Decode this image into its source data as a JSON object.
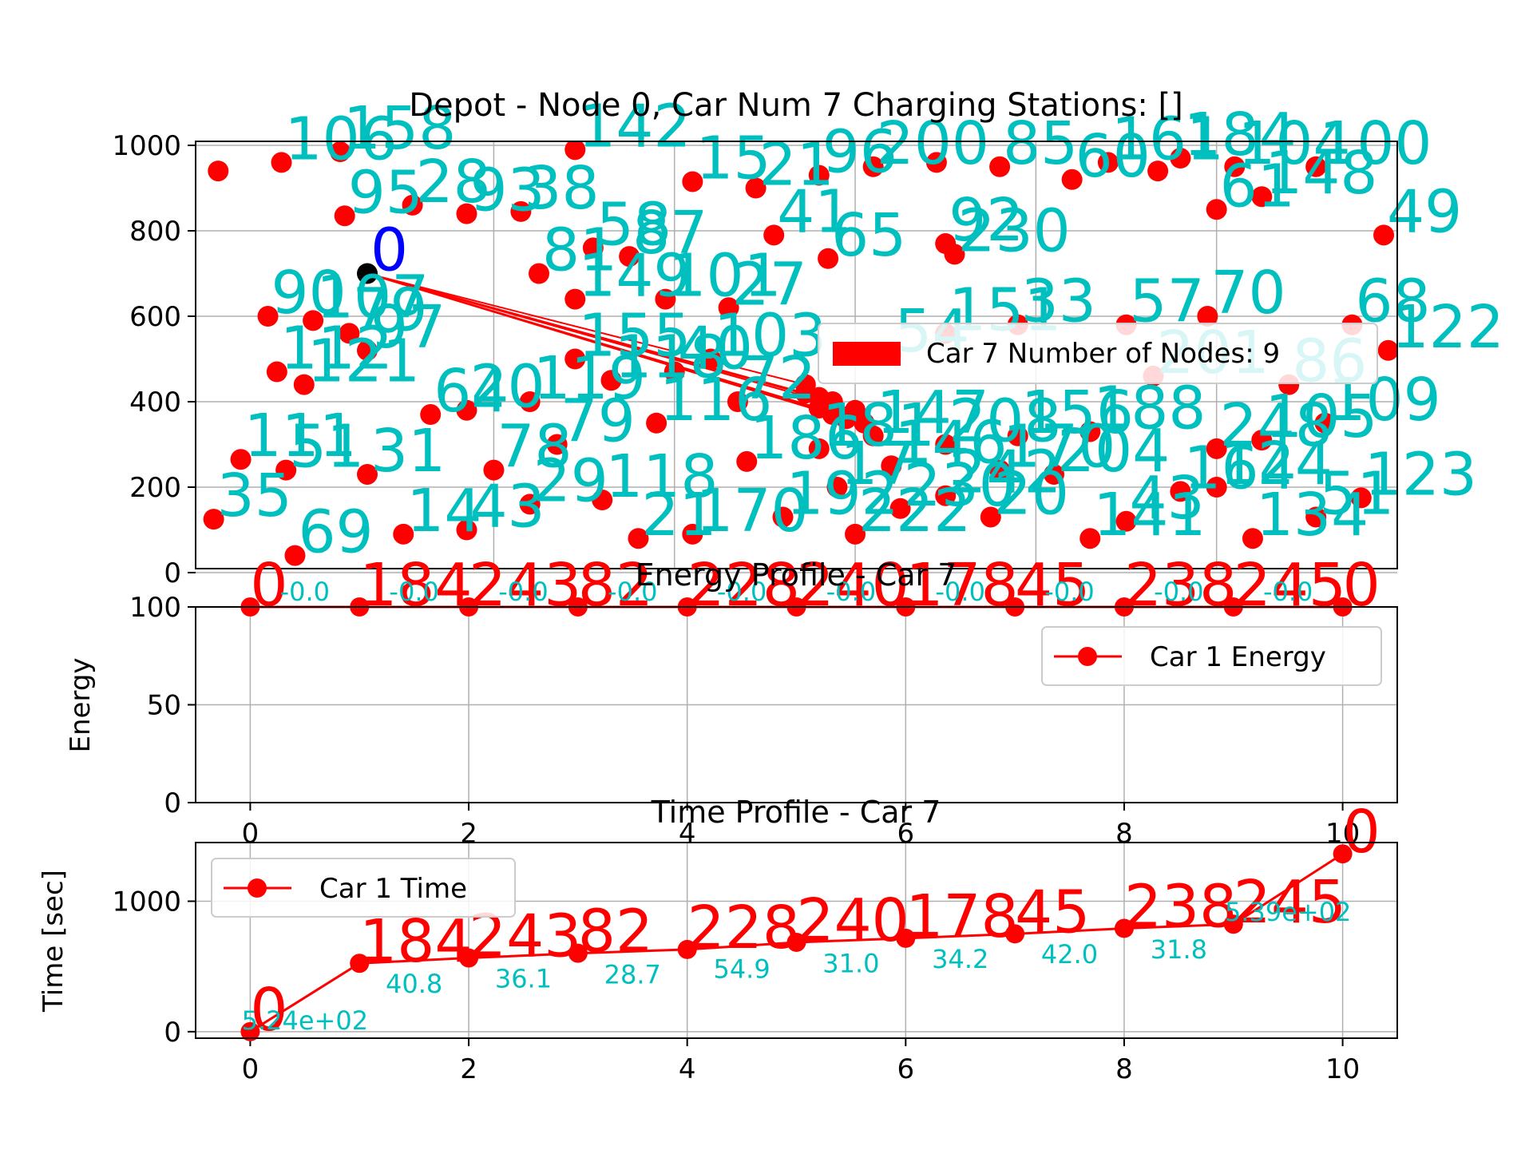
{
  "colors": {
    "node": "#ff0000",
    "node_label": "#00bfbf",
    "route": "#ff0000",
    "depot": "#000000",
    "depot_label": "#0000ff",
    "grid": "#b0b0b0",
    "axes": "#000000"
  },
  "chart_data": [
    {
      "type": "scatter",
      "title": "Depot - Node 0, Car Num 7 Charging Stations: []",
      "xlim": [
        0,
        1000
      ],
      "ylim": [
        0,
        1000
      ],
      "yticks": [
        "0",
        "200",
        "400",
        "600",
        "800",
        "1000"
      ],
      "grid": true,
      "legend": {
        "label": "Car 7 Number of Nodes: 9",
        "placement": "center-right"
      },
      "depot": {
        "x": 60,
        "y": 700,
        "label": "0"
      },
      "route_nodes": [
        {
          "x": 545,
          "y": 440
        },
        {
          "x": 545,
          "y": 420
        },
        {
          "x": 560,
          "y": 410
        },
        {
          "x": 575,
          "y": 400
        },
        {
          "x": 560,
          "y": 385
        },
        {
          "x": 575,
          "y": 370
        },
        {
          "x": 590,
          "y": 360
        },
        {
          "x": 610,
          "y": 350
        },
        {
          "x": 600,
          "y": 380
        }
      ],
      "nodes": [
        {
          "x": -105,
          "y": 940,
          "label": ""
        },
        {
          "x": -35,
          "y": 960,
          "label": "106"
        },
        {
          "x": 30,
          "y": 985,
          "label": "158"
        },
        {
          "x": 35,
          "y": 835,
          "label": "95"
        },
        {
          "x": 110,
          "y": 860,
          "label": "28"
        },
        {
          "x": 170,
          "y": 840,
          "label": "93"
        },
        {
          "x": 230,
          "y": 845,
          "label": "38"
        },
        {
          "x": 290,
          "y": 990,
          "label": "142"
        },
        {
          "x": 420,
          "y": 915,
          "label": "15"
        },
        {
          "x": 490,
          "y": 900,
          "label": "21"
        },
        {
          "x": 560,
          "y": 930,
          "label": "96"
        },
        {
          "x": 620,
          "y": 950,
          "label": "200"
        },
        {
          "x": 690,
          "y": 960,
          "label": ""
        },
        {
          "x": 760,
          "y": 950,
          "label": "85"
        },
        {
          "x": 840,
          "y": 920,
          "label": "60"
        },
        {
          "x": 880,
          "y": 960,
          "label": "161"
        },
        {
          "x": 960,
          "y": 970,
          "label": "184"
        },
        {
          "x": 1020,
          "y": 950,
          "label": "104"
        },
        {
          "x": 1050,
          "y": 880,
          "label": "148"
        },
        {
          "x": 1110,
          "y": 950,
          "label": "100"
        },
        {
          "x": 1185,
          "y": 790,
          "label": "49"
        },
        {
          "x": 1000,
          "y": 850,
          "label": "61"
        },
        {
          "x": 935,
          "y": 940,
          "label": ""
        },
        {
          "x": 700,
          "y": 770,
          "label": "92"
        },
        {
          "x": 710,
          "y": 745,
          "label": "230"
        },
        {
          "x": 570,
          "y": 735,
          "label": "65"
        },
        {
          "x": 510,
          "y": 790,
          "label": "41"
        },
        {
          "x": 460,
          "y": 620,
          "label": "27"
        },
        {
          "x": 390,
          "y": 640,
          "label": "101"
        },
        {
          "x": 350,
          "y": 740,
          "label": "87"
        },
        {
          "x": 310,
          "y": 760,
          "label": "58"
        },
        {
          "x": 290,
          "y": 640,
          "label": "149"
        },
        {
          "x": 250,
          "y": 700,
          "label": "81"
        },
        {
          "x": -50,
          "y": 600,
          "label": "90"
        },
        {
          "x": 0,
          "y": 590,
          "label": "107"
        },
        {
          "x": 40,
          "y": 560,
          "label": "79"
        },
        {
          "x": -40,
          "y": 470,
          "label": "112"
        },
        {
          "x": -10,
          "y": 440,
          "label": "121"
        },
        {
          "x": 60,
          "y": 520,
          "label": "97"
        },
        {
          "x": 170,
          "y": 380,
          "label": "20"
        },
        {
          "x": 130,
          "y": 370,
          "label": "64"
        },
        {
          "x": 240,
          "y": 400,
          "label": "119"
        },
        {
          "x": 290,
          "y": 500,
          "label": "155"
        },
        {
          "x": 330,
          "y": 450,
          "label": "118"
        },
        {
          "x": 380,
          "y": 350,
          "label": "116"
        },
        {
          "x": 440,
          "y": 500,
          "label": "103"
        },
        {
          "x": 400,
          "y": 470,
          "label": "40"
        },
        {
          "x": 470,
          "y": 400,
          "label": "72"
        },
        {
          "x": -80,
          "y": 265,
          "label": "111"
        },
        {
          "x": -30,
          "y": 240,
          "label": "51"
        },
        {
          "x": 60,
          "y": 230,
          "label": "31"
        },
        {
          "x": -110,
          "y": 125,
          "label": "35"
        },
        {
          "x": -20,
          "y": 40,
          "label": "69"
        },
        {
          "x": 100,
          "y": 90,
          "label": "14"
        },
        {
          "x": 170,
          "y": 100,
          "label": "43"
        },
        {
          "x": 200,
          "y": 240,
          "label": "78"
        },
        {
          "x": 240,
          "y": 160,
          "label": "29"
        },
        {
          "x": 270,
          "y": 300,
          "label": "79"
        },
        {
          "x": 320,
          "y": 170,
          "label": "118"
        },
        {
          "x": 360,
          "y": 80,
          "label": "21"
        },
        {
          "x": 420,
          "y": 90,
          "label": "170"
        },
        {
          "x": 480,
          "y": 260,
          "label": "186"
        },
        {
          "x": 520,
          "y": 130,
          "label": "192"
        },
        {
          "x": 580,
          "y": 200,
          "label": "17"
        },
        {
          "x": 640,
          "y": 250,
          "label": "146"
        },
        {
          "x": 700,
          "y": 180,
          "label": "242"
        },
        {
          "x": 760,
          "y": 240,
          "label": "170"
        },
        {
          "x": 820,
          "y": 230,
          "label": "204"
        },
        {
          "x": 860,
          "y": 80,
          "label": "141"
        },
        {
          "x": 900,
          "y": 120,
          "label": "43"
        },
        {
          "x": 960,
          "y": 190,
          "label": "164"
        },
        {
          "x": 1000,
          "y": 200,
          "label": "124"
        },
        {
          "x": 1040,
          "y": 80,
          "label": "134"
        },
        {
          "x": 1110,
          "y": 130,
          "label": "51"
        },
        {
          "x": 1160,
          "y": 175,
          "label": "123"
        },
        {
          "x": 1120,
          "y": 350,
          "label": "109"
        },
        {
          "x": 1050,
          "y": 310,
          "label": "105"
        },
        {
          "x": 1000,
          "y": 290,
          "label": "248"
        },
        {
          "x": 1150,
          "y": 580,
          "label": "68"
        },
        {
          "x": 1190,
          "y": 520,
          "label": "122"
        },
        {
          "x": 990,
          "y": 600,
          "label": "70"
        },
        {
          "x": 900,
          "y": 580,
          "label": "57"
        },
        {
          "x": 780,
          "y": 580,
          "label": "33"
        },
        {
          "x": 700,
          "y": 560,
          "label": "151"
        },
        {
          "x": 640,
          "y": 510,
          "label": "54"
        },
        {
          "x": 860,
          "y": 330,
          "label": "188"
        },
        {
          "x": 780,
          "y": 320,
          "label": "156"
        },
        {
          "x": 700,
          "y": 300,
          "label": "208"
        },
        {
          "x": 620,
          "y": 320,
          "label": "147"
        },
        {
          "x": 650,
          "y": 150,
          "label": "230"
        },
        {
          "x": 560,
          "y": 290,
          "label": "181"
        },
        {
          "x": 600,
          "y": 90,
          "label": "222"
        },
        {
          "x": 750,
          "y": 130,
          "label": "20"
        },
        {
          "x": 1080,
          "y": 440,
          "label": "86"
        },
        {
          "x": 930,
          "y": 460,
          "label": "201"
        }
      ]
    },
    {
      "type": "line",
      "title": "Energy Profile - Car 7",
      "ylabel": "Energy",
      "xlim": [
        -0.5,
        10.5
      ],
      "ylim": [
        0,
        100
      ],
      "xticks": [
        "0",
        "2",
        "4",
        "6",
        "8",
        "10"
      ],
      "yticks": [
        "0",
        "50",
        "100"
      ],
      "grid": true,
      "legend": {
        "label": "Car 1 Energy",
        "placement": "upper-right"
      },
      "series": [
        {
          "name": "Car 1 Energy",
          "x": [
            0,
            1,
            2,
            3,
            4,
            5,
            6,
            7,
            8,
            9,
            10
          ],
          "values": [
            100,
            100,
            100,
            100,
            100,
            100,
            100,
            100,
            100,
            100,
            100
          ]
        }
      ],
      "node_labels": [
        "0",
        "184",
        "243",
        "82",
        "228",
        "240",
        "178",
        "45",
        "238",
        "245",
        "0"
      ],
      "segment_labels": [
        "-0.0",
        "-0.0",
        "-0.0",
        "-0.0",
        "-0.0",
        "-0.0",
        "-0.0",
        "-0.0",
        "-0.0",
        "-0.0"
      ]
    },
    {
      "type": "line",
      "title": "Time Profile - Car 7",
      "ylabel": "Time [sec]",
      "xlim": [
        -0.5,
        10.5
      ],
      "ylim": [
        -50,
        1450
      ],
      "xticks": [
        "0",
        "2",
        "4",
        "6",
        "8",
        "10"
      ],
      "yticks": [
        "0",
        "1000"
      ],
      "grid": true,
      "legend": {
        "label": "Car 1 Time",
        "placement": "upper-left"
      },
      "series": [
        {
          "name": "Car 1 Time",
          "x": [
            0,
            1,
            2,
            3,
            4,
            5,
            6,
            7,
            8,
            9,
            10
          ],
          "values": [
            0,
            524,
            565,
            601,
            630,
            685,
            716,
            750,
            792,
            824,
            1363
          ]
        }
      ],
      "node_labels": [
        "0",
        "184",
        "243",
        "82",
        "228",
        "240",
        "178",
        "45",
        "238",
        "245",
        "0"
      ],
      "segment_labels": [
        "5.24e+02",
        "40.8",
        "36.1",
        "28.7",
        "54.9",
        "31.0",
        "34.2",
        "42.0",
        "31.8",
        "5.39e+02"
      ]
    }
  ]
}
